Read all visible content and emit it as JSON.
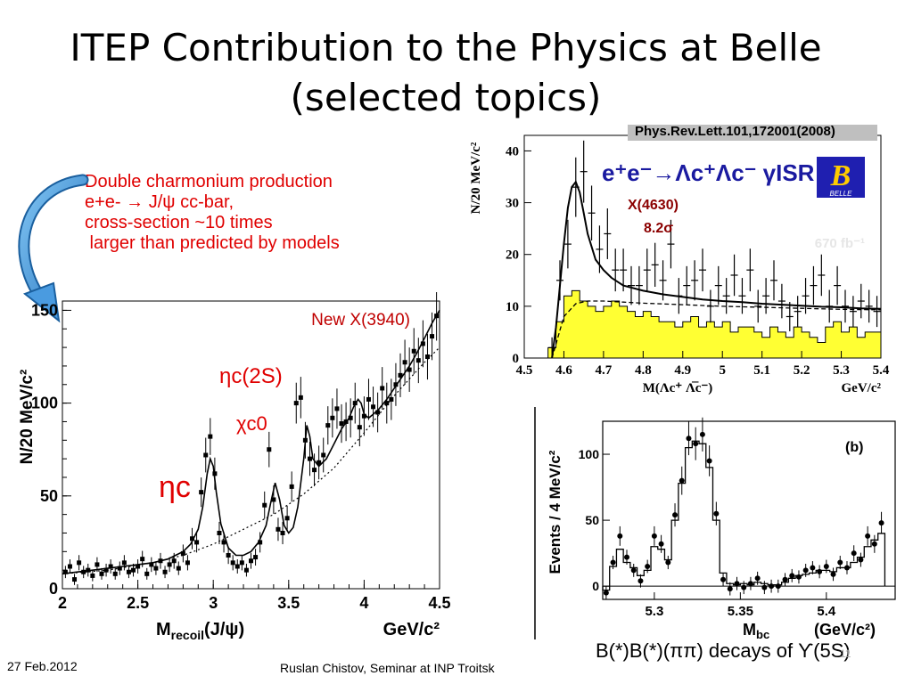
{
  "slide": {
    "title_line1": "ITEP Contribution to the Physics at Belle",
    "title_line2": "(selected topics)",
    "annotation_lines": [
      "Double charmonium production",
      "e+e-  → J/ψ cc-bar,",
      "cross-section ~10 times",
      " larger than predicted by models"
    ],
    "footer_date": "27 Feb.2012",
    "footer_center": "Ruslan Chistov, Seminar at INP Troitsk",
    "page_number": "11",
    "bottom_caption": "B(*)B(*)(ππ) decays of ϒ(5S)"
  },
  "chart_data": [
    {
      "type": "scatter",
      "id": "recoil-mass",
      "xlabel_main": "M",
      "xlabel_sub": "recoil",
      "xlabel_tail": "(J/ψ)",
      "xunit": "GeV/c²",
      "ylabel": "N/20 MeV/c²",
      "xlim": [
        2.0,
        4.5
      ],
      "ylim": [
        0,
        155
      ],
      "xticks": [
        2,
        2.5,
        3,
        3.5,
        4,
        4.5
      ],
      "xtick_labels": [
        "2",
        "2.5",
        "3",
        "3.5",
        "4",
        "4.5"
      ],
      "yticks": [
        0,
        50,
        100,
        150
      ],
      "ytick_labels": [
        "0",
        "50",
        "100",
        "150"
      ],
      "annotations": [
        "New X(3940)",
        "ηc(2S)",
        "χc0",
        "ηc"
      ],
      "x": [
        2.02,
        2.05,
        2.08,
        2.11,
        2.14,
        2.17,
        2.2,
        2.23,
        2.26,
        2.29,
        2.32,
        2.35,
        2.38,
        2.41,
        2.44,
        2.47,
        2.5,
        2.53,
        2.56,
        2.59,
        2.62,
        2.65,
        2.68,
        2.71,
        2.74,
        2.77,
        2.8,
        2.83,
        2.86,
        2.89,
        2.92,
        2.95,
        2.98,
        3.01,
        3.04,
        3.07,
        3.1,
        3.13,
        3.16,
        3.19,
        3.22,
        3.25,
        3.28,
        3.31,
        3.34,
        3.37,
        3.4,
        3.43,
        3.46,
        3.49,
        3.52,
        3.55,
        3.58,
        3.61,
        3.64,
        3.67,
        3.7,
        3.73,
        3.76,
        3.79,
        3.82,
        3.85,
        3.88,
        3.91,
        3.94,
        3.97,
        4.0,
        4.03,
        4.06,
        4.09,
        4.12,
        4.15,
        4.18,
        4.21,
        4.24,
        4.27,
        4.3,
        4.33,
        4.36,
        4.39,
        4.42,
        4.45,
        4.48
      ],
      "y": [
        9,
        12,
        5,
        14,
        9,
        10,
        7,
        13,
        8,
        10,
        12,
        8,
        11,
        14,
        9,
        10,
        12,
        16,
        8,
        13,
        11,
        15,
        9,
        13,
        15,
        11,
        19,
        14,
        27,
        25,
        52,
        72,
        82,
        62,
        30,
        25,
        18,
        14,
        12,
        14,
        10,
        15,
        17,
        25,
        45,
        75,
        48,
        32,
        30,
        38,
        55,
        100,
        103,
        80,
        70,
        64,
        68,
        72,
        88,
        92,
        97,
        89,
        90,
        92,
        100,
        87,
        93,
        102,
        98,
        95,
        108,
        100,
        102,
        110,
        115,
        122,
        118,
        128,
        123,
        132,
        125,
        136,
        147
      ],
      "fit_x": [
        2.0,
        2.1,
        2.2,
        2.3,
        2.4,
        2.5,
        2.6,
        2.7,
        2.75,
        2.8,
        2.85,
        2.9,
        2.93,
        2.96,
        2.98,
        3.0,
        3.02,
        3.05,
        3.1,
        3.15,
        3.2,
        3.25,
        3.3,
        3.35,
        3.38,
        3.41,
        3.44,
        3.47,
        3.5,
        3.53,
        3.56,
        3.6,
        3.62,
        3.64,
        3.66,
        3.7,
        3.75,
        3.8,
        3.85,
        3.9,
        3.93,
        3.96,
        3.98,
        4.0,
        4.03,
        4.06,
        4.1,
        4.15,
        4.2,
        4.25,
        4.3,
        4.35,
        4.4,
        4.45,
        4.5
      ],
      "fit_y": [
        8,
        9,
        10,
        11,
        12,
        13,
        14,
        16,
        18,
        20,
        24,
        32,
        44,
        62,
        70,
        66,
        52,
        35,
        22,
        18,
        18,
        20,
        25,
        34,
        46,
        57,
        48,
        34,
        30,
        33,
        44,
        70,
        88,
        82,
        70,
        66,
        70,
        78,
        86,
        92,
        98,
        102,
        100,
        94,
        92,
        94,
        97,
        102,
        108,
        114,
        120,
        127,
        135,
        143,
        150
      ],
      "bkg_x": [
        2.0,
        2.3,
        2.6,
        2.8,
        3.0,
        3.2,
        3.4,
        3.6,
        3.8,
        4.0,
        4.2,
        4.4,
        4.5
      ],
      "bkg_y": [
        8,
        10,
        14,
        18,
        24,
        32,
        40,
        51,
        65,
        84,
        104,
        122,
        130
      ]
    },
    {
      "type": "bar",
      "id": "lambda-c",
      "xlabel": "M(Λc⁺ Λ̅c⁻)",
      "xunit": "GeV/c²",
      "ylabel": "N/20 MeV/c²",
      "xlim": [
        4.5,
        5.4
      ],
      "ylim": [
        0,
        43
      ],
      "xticks": [
        4.5,
        4.6,
        4.7,
        4.8,
        4.9,
        5.0,
        5.1,
        5.2,
        5.3,
        5.4
      ],
      "xtick_labels": [
        "4.5",
        "4.6",
        "4.7",
        "4.8",
        "4.9",
        "5",
        "5.1",
        "5.2",
        "5.3",
        "5.4"
      ],
      "yticks": [
        0,
        10,
        20,
        30,
        40
      ],
      "ytick_labels": [
        "0",
        "10",
        "20",
        "30",
        "40"
      ],
      "reference": "Phys.Rev.Lett.101,172001(2008)",
      "reaction_label": "e⁺e⁻→Λc⁺Λc⁻ γISR",
      "signal_label": "X(4630)",
      "significance": "8.2σ",
      "luminosity": "670 fb⁻¹",
      "logo_text": "BELLE",
      "data_x": [
        4.57,
        4.59,
        4.61,
        4.63,
        4.65,
        4.67,
        4.69,
        4.71,
        4.73,
        4.75,
        4.77,
        4.79,
        4.81,
        4.83,
        4.85,
        4.87,
        4.89,
        4.91,
        4.93,
        4.95,
        4.97,
        4.99,
        5.01,
        5.03,
        5.05,
        5.07,
        5.09,
        5.11,
        5.13,
        5.15,
        5.17,
        5.19,
        5.21,
        5.23,
        5.25,
        5.27,
        5.29,
        5.31,
        5.33,
        5.35,
        5.37,
        5.39
      ],
      "data_y": [
        2,
        15,
        22,
        33,
        36,
        28,
        21,
        24,
        17,
        17,
        14,
        14,
        17,
        18,
        15,
        22,
        12,
        14,
        15,
        17,
        10,
        14,
        12,
        16,
        12,
        17,
        10,
        12,
        15,
        11,
        8,
        9,
        12,
        14,
        16,
        10,
        14,
        10,
        9,
        11,
        10,
        9
      ],
      "hist_x": [
        4.56,
        4.58,
        4.6,
        4.62,
        4.64,
        4.66,
        4.68,
        4.7,
        4.72,
        4.74,
        4.76,
        4.78,
        4.8,
        4.82,
        4.84,
        4.86,
        4.88,
        4.9,
        4.92,
        4.94,
        4.96,
        4.98,
        5.0,
        5.02,
        5.04,
        5.06,
        5.08,
        5.1,
        5.12,
        5.14,
        5.16,
        5.18,
        5.2,
        5.22,
        5.24,
        5.26,
        5.28,
        5.3,
        5.32,
        5.34,
        5.36,
        5.38
      ],
      "hist_y": [
        2,
        7,
        12,
        13,
        11,
        10,
        9,
        10,
        11,
        10,
        9,
        8,
        9,
        8,
        7,
        7,
        6,
        7,
        8,
        6,
        7,
        6,
        7,
        5,
        6,
        6,
        5,
        4,
        6,
        5,
        4,
        6,
        5,
        4,
        3,
        6,
        7,
        5,
        6,
        4,
        5,
        5
      ],
      "fit_x": [
        4.57,
        4.58,
        4.59,
        4.6,
        4.61,
        4.62,
        4.63,
        4.64,
        4.65,
        4.66,
        4.68,
        4.7,
        4.72,
        4.75,
        4.8,
        4.85,
        4.9,
        4.95,
        5.0,
        5.05,
        5.1,
        5.15,
        5.2,
        5.25,
        5.3,
        5.35,
        5.4
      ],
      "fit_y": [
        0,
        6,
        14,
        22,
        29,
        33,
        34,
        32,
        28,
        24,
        19,
        17,
        15.5,
        14,
        13,
        12.3,
        11.8,
        11.3,
        11,
        10.8,
        10.5,
        10.3,
        10.1,
        9.9,
        9.8,
        9.6,
        9.5
      ],
      "bkg_x": [
        4.57,
        4.6,
        4.63,
        4.66,
        4.7,
        4.75,
        4.8,
        4.9,
        5.0,
        5.1,
        5.2,
        5.3,
        5.4
      ],
      "bkg_y": [
        0,
        8,
        10.5,
        11,
        11,
        10.8,
        10.6,
        10.3,
        10,
        9.8,
        9.6,
        9.4,
        9.3
      ]
    },
    {
      "type": "scatter",
      "id": "mbc",
      "xlabel_main": "M",
      "xlabel_sub": "bc",
      "xunit": "(GeV/c²)",
      "ylabel": "Events / 4 MeV/c²",
      "panel_label": "(b)",
      "xlim": [
        5.27,
        5.44
      ],
      "ylim": [
        -10,
        125
      ],
      "xticks": [
        5.3,
        5.35,
        5.4
      ],
      "xtick_labels": [
        "5.3",
        "5.35",
        "5.4"
      ],
      "yticks": [
        0,
        50,
        100
      ],
      "ytick_labels": [
        "0",
        "50",
        "100"
      ],
      "x": [
        5.272,
        5.276,
        5.28,
        5.284,
        5.288,
        5.292,
        5.296,
        5.3,
        5.304,
        5.308,
        5.312,
        5.316,
        5.32,
        5.324,
        5.328,
        5.332,
        5.336,
        5.34,
        5.344,
        5.348,
        5.352,
        5.356,
        5.36,
        5.364,
        5.368,
        5.372,
        5.376,
        5.38,
        5.384,
        5.388,
        5.392,
        5.396,
        5.4,
        5.404,
        5.408,
        5.412,
        5.416,
        5.42,
        5.424,
        5.428,
        5.432
      ],
      "y": [
        -5,
        18,
        38,
        22,
        12,
        4,
        15,
        38,
        32,
        18,
        54,
        80,
        112,
        108,
        115,
        95,
        55,
        5,
        -2,
        2,
        -1,
        2,
        6,
        -1,
        0,
        0,
        5,
        8,
        7,
        12,
        14,
        11,
        15,
        9,
        18,
        14,
        25,
        20,
        38,
        32,
        48
      ],
      "hist_x": [
        5.27,
        5.274,
        5.278,
        5.282,
        5.286,
        5.29,
        5.294,
        5.298,
        5.302,
        5.306,
        5.31,
        5.314,
        5.318,
        5.322,
        5.326,
        5.33,
        5.334,
        5.338,
        5.342,
        5.346,
        5.35,
        5.354,
        5.358,
        5.362,
        5.366,
        5.37,
        5.374,
        5.378,
        5.382,
        5.386,
        5.39,
        5.394,
        5.398,
        5.402,
        5.406,
        5.41,
        5.414,
        5.418,
        5.422,
        5.426,
        5.43
      ],
      "hist_y": [
        -3,
        15,
        28,
        18,
        14,
        8,
        12,
        30,
        28,
        20,
        50,
        78,
        105,
        110,
        108,
        90,
        50,
        10,
        2,
        1,
        2,
        1,
        3,
        2,
        1,
        1,
        3,
        6,
        8,
        9,
        10,
        12,
        12,
        11,
        14,
        14,
        18,
        22,
        30,
        35,
        40
      ]
    }
  ]
}
